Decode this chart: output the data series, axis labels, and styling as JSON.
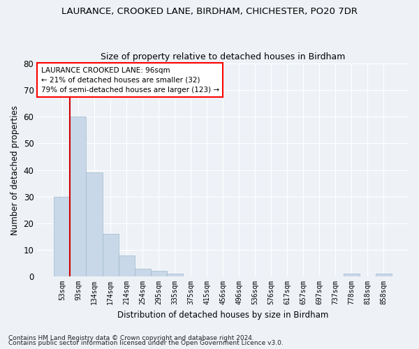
{
  "title1": "LAURANCE, CROOKED LANE, BIRDHAM, CHICHESTER, PO20 7DR",
  "title2": "Size of property relative to detached houses in Birdham",
  "xlabel": "Distribution of detached houses by size in Birdham",
  "ylabel": "Number of detached properties",
  "bar_color": "#c8d8e8",
  "bar_edge_color": "#a0b8cc",
  "vline_color": "#cc0000",
  "categories": [
    "53sqm",
    "93sqm",
    "134sqm",
    "174sqm",
    "214sqm",
    "254sqm",
    "295sqm",
    "335sqm",
    "375sqm",
    "415sqm",
    "456sqm",
    "496sqm",
    "536sqm",
    "576sqm",
    "617sqm",
    "657sqm",
    "697sqm",
    "737sqm",
    "778sqm",
    "818sqm",
    "858sqm"
  ],
  "values": [
    30,
    60,
    39,
    16,
    8,
    3,
    2,
    1,
    0,
    0,
    0,
    0,
    0,
    0,
    0,
    0,
    0,
    0,
    1,
    0,
    1
  ],
  "ylim": [
    0,
    80
  ],
  "yticks": [
    0,
    10,
    20,
    30,
    40,
    50,
    60,
    70,
    80
  ],
  "annotation_text": "LAURANCE CROOKED LANE: 96sqm\n← 21% of detached houses are smaller (32)\n79% of semi-detached houses are larger (123) →",
  "footnote1": "Contains HM Land Registry data © Crown copyright and database right 2024.",
  "footnote2": "Contains public sector information licensed under the Open Government Licence v3.0.",
  "bg_color": "#eef2f7",
  "plot_bg_color": "#eef2f7",
  "grid_color": "#ffffff"
}
